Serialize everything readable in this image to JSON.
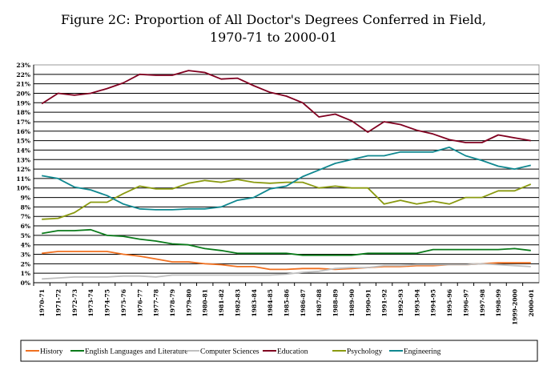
{
  "chart_data": {
    "type": "line",
    "title": "Figure 2C: Proportion of All Doctor's Degrees Conferred in Field,",
    "subtitle": "1970-71 to 2000-01",
    "xlabel": "",
    "ylabel": "",
    "ylim": [
      0,
      23
    ],
    "y_ticks": [
      "0%",
      "1%",
      "2%",
      "3%",
      "4%",
      "5%",
      "6%",
      "7%",
      "8%",
      "9%",
      "10%",
      "11%",
      "12%",
      "13%",
      "14%",
      "15%",
      "16%",
      "17%",
      "18%",
      "19%",
      "20%",
      "21%",
      "22%",
      "23%"
    ],
    "grid": true,
    "legend_position": "bottom",
    "categories": [
      "1970-71",
      "1971-72",
      "1972-73",
      "1973-74",
      "1974-75",
      "1975-76",
      "1976-77",
      "1977-78",
      "1978-79",
      "1979-80",
      "1980-81",
      "1981-82",
      "1982-83",
      "1983-84",
      "1984-85",
      "1985-86",
      "1986-87",
      "1987-88",
      "1988-89",
      "1989-90",
      "1990-91",
      "1991-92",
      "1992-93",
      "1993-94",
      "1994-95",
      "1995-96",
      "1996-97",
      "1997-98",
      "1998-99",
      "1999-2000",
      "2000-01"
    ],
    "series": [
      {
        "name": "History",
        "color": "#f07020",
        "values": [
          3.1,
          3.3,
          3.3,
          3.3,
          3.3,
          3.0,
          2.8,
          2.5,
          2.2,
          2.2,
          2.0,
          1.9,
          1.7,
          1.7,
          1.4,
          1.4,
          1.5,
          1.5,
          1.4,
          1.5,
          1.6,
          1.7,
          1.7,
          1.8,
          1.8,
          1.9,
          1.9,
          2.0,
          2.1,
          2.1,
          2.1
        ]
      },
      {
        "name": "English Languages and Literature",
        "color": "#0a7a1a",
        "values": [
          5.2,
          5.5,
          5.5,
          5.6,
          5.0,
          4.9,
          4.6,
          4.4,
          4.1,
          4.0,
          3.6,
          3.4,
          3.1,
          3.1,
          3.1,
          3.1,
          2.9,
          2.9,
          2.9,
          2.9,
          3.1,
          3.1,
          3.1,
          3.1,
          3.5,
          3.5,
          3.5,
          3.5,
          3.5,
          3.6,
          3.4
        ]
      },
      {
        "name": "Computer Sciences",
        "color": "#c0c0c0",
        "values": [
          0.4,
          0.5,
          0.6,
          0.6,
          0.6,
          0.7,
          0.7,
          0.6,
          0.8,
          0.8,
          0.8,
          0.8,
          0.8,
          0.8,
          0.8,
          0.9,
          1.1,
          1.2,
          1.5,
          1.6,
          1.6,
          1.8,
          1.8,
          1.9,
          1.9,
          1.9,
          1.9,
          2.0,
          1.9,
          1.8,
          1.7
        ]
      },
      {
        "name": "Education",
        "color": "#800020",
        "values": [
          18.9,
          20.0,
          19.8,
          20.0,
          20.5,
          21.1,
          22.0,
          21.9,
          21.9,
          22.4,
          22.2,
          21.5,
          21.6,
          20.8,
          20.1,
          19.7,
          19.0,
          17.5,
          17.8,
          17.1,
          15.9,
          17.0,
          16.7,
          16.1,
          15.7,
          15.1,
          14.8,
          14.8,
          15.6,
          15.3,
          15.0
        ]
      },
      {
        "name": "Psychology",
        "color": "#8a9a10",
        "values": [
          6.7,
          6.8,
          7.4,
          8.5,
          8.5,
          9.4,
          10.2,
          9.9,
          9.9,
          10.5,
          10.8,
          10.6,
          10.9,
          10.6,
          10.5,
          10.6,
          10.6,
          10.0,
          10.2,
          10.0,
          10.0,
          8.3,
          8.7,
          8.3,
          8.6,
          8.3,
          9.0,
          9.0,
          9.7,
          9.7,
          10.4
        ]
      },
      {
        "name": "Engineering",
        "color": "#108890",
        "values": [
          11.3,
          11.0,
          10.1,
          9.8,
          9.2,
          8.3,
          7.8,
          7.7,
          7.7,
          7.8,
          7.8,
          8.0,
          8.7,
          9.0,
          9.9,
          10.2,
          11.2,
          11.9,
          12.6,
          13.0,
          13.4,
          13.4,
          13.8,
          13.8,
          13.8,
          14.3,
          13.4,
          12.9,
          12.3,
          12.0,
          12.4
        ]
      }
    ]
  }
}
